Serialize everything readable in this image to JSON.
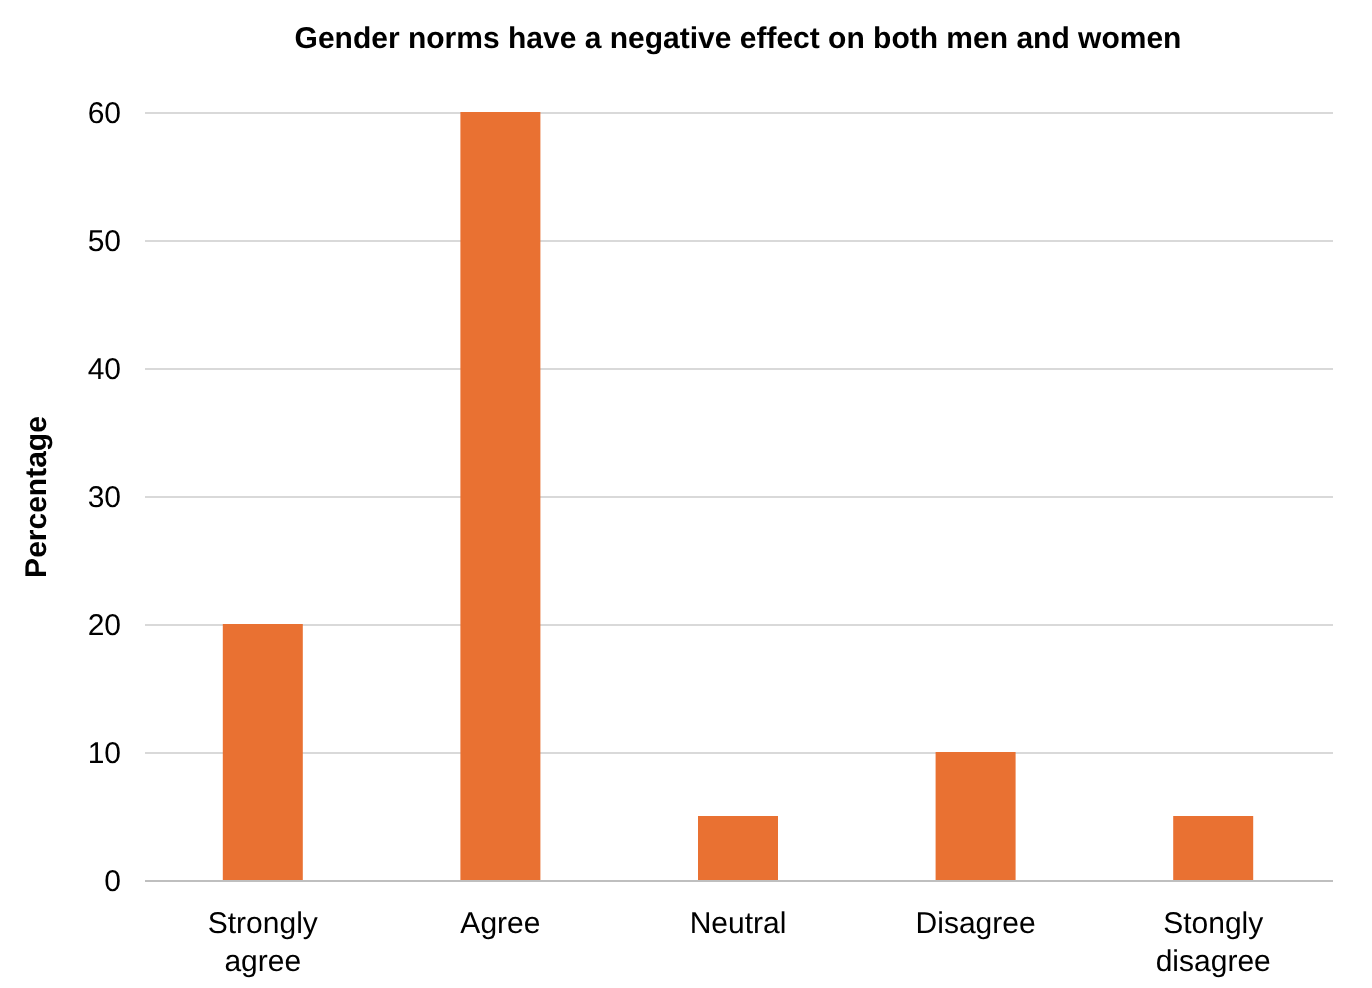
{
  "chart_data": {
    "type": "bar",
    "title": "Gender norms have a negative effect on both men and women",
    "ylabel": "Percentage",
    "categories": [
      "Strongly agree",
      "Agree",
      "Neutral",
      "Disagree",
      "Stongly disagree"
    ],
    "values": [
      20,
      60,
      5,
      10,
      5
    ],
    "color": "#e97132",
    "ylim": [
      0,
      60
    ],
    "yticks": [
      0,
      10,
      20,
      30,
      40,
      50,
      60
    ],
    "grid": "y"
  }
}
